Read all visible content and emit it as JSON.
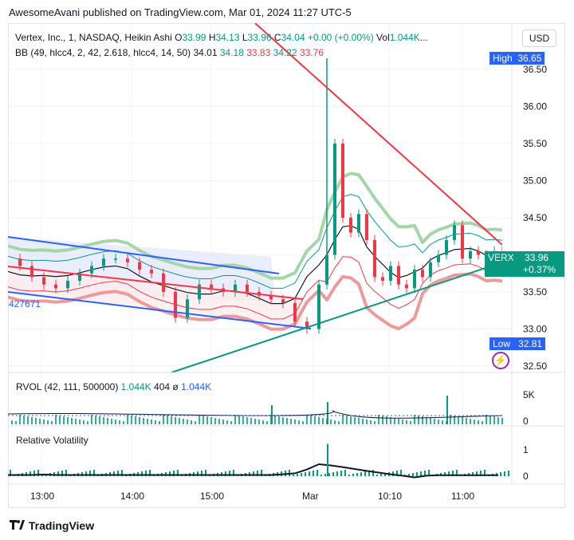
{
  "publish_line": "AwesomeAvani published on TradingView.com, Mar 01, 2024 11:27 UTC-5",
  "currency_button": "USD",
  "logo_text": "TradingView",
  "legend": {
    "symbol": "Vertex, Inc., 1, NASDAQ, Heikin Ashi",
    "open_label": "O",
    "open": "33.99",
    "high_label": "H",
    "high": "34.13",
    "low_label": "L",
    "low": "33.96",
    "close_label": "C",
    "close": "34.04",
    "change": "+0.00 (+0.00%)",
    "vol_label": "Vol",
    "vol": "1.044K",
    "more": "...",
    "bb_label": "BB (49, hlcc4, 2, 42, 2.618, hlcc4, 14, 50)",
    "bb_values": [
      "34.01",
      "34.18",
      "33.83",
      "34.22",
      "33.76"
    ]
  },
  "tags": {
    "high_label": "High",
    "high_value": "36.65",
    "low_label": "Low",
    "low_value": "32.81",
    "ticker": "VERX",
    "last_price": "33.96",
    "last_change": "+0.37%"
  },
  "left_clipped_label": "427671",
  "rvol": {
    "label": "RVOL (42, 111, 500000)",
    "v1": "1.044K",
    "v2": "404",
    "v3": "ø",
    "v4": "1.044K",
    "ticks": [
      "5K",
      "0"
    ]
  },
  "relvol": {
    "label": "Relative Volatility",
    "ticks": [
      "1",
      "0"
    ]
  },
  "colors": {
    "up": "#089981",
    "down": "#f23645",
    "blue_channel": "#2962ff",
    "red_line": "#f23645",
    "green_line": "#089981",
    "upper_band": "#a5d6a7",
    "lower_band": "#ef9a9a"
  },
  "chart_data": {
    "type": "line",
    "title": "Vertex, Inc., 1, NASDAQ, Heikin Ashi",
    "y_ticks": [
      "36.50",
      "36.00",
      "35.50",
      "35.00",
      "34.50",
      "34.00",
      "33.50",
      "33.00",
      "32.50"
    ],
    "ylim": [
      32.45,
      36.75
    ],
    "x_ticks": [
      "13:00",
      "14:00",
      "15:00",
      "Mar",
      "10:10",
      "11:00"
    ],
    "series": [
      {
        "name": "Heikin Ashi close",
        "x": [
          0,
          3,
          6,
          9,
          12,
          15,
          18,
          21,
          24,
          27,
          30,
          33,
          36,
          39,
          42,
          45,
          48,
          51,
          54,
          57,
          60,
          63,
          66,
          69,
          72,
          75,
          78,
          80,
          82,
          84,
          86,
          88,
          90,
          92,
          94,
          96,
          98,
          100,
          102,
          104,
          106,
          108,
          110,
          112,
          114,
          116,
          118,
          120,
          122,
          124
        ],
        "values": [
          33.95,
          33.85,
          33.7,
          33.6,
          33.55,
          33.65,
          33.75,
          33.85,
          33.95,
          33.95,
          33.9,
          33.8,
          33.75,
          33.5,
          33.15,
          33.4,
          33.6,
          33.55,
          33.5,
          33.6,
          33.5,
          33.45,
          33.4,
          33.35,
          33.1,
          33.0,
          33.6,
          34.0,
          35.5,
          34.5,
          34.3,
          34.55,
          34.2,
          33.7,
          33.65,
          33.85,
          33.6,
          33.55,
          33.8,
          33.7,
          33.9,
          34.0,
          34.2,
          34.4,
          33.95,
          34.05,
          34.0,
          33.95,
          34.05,
          33.96
        ]
      }
    ],
    "volume": {
      "name": "RVOL",
      "max": 5000,
      "highlights": [
        {
          "x": 66,
          "value": 3000
        },
        {
          "x": 80,
          "value": 3500
        },
        {
          "x": 110,
          "value": 4500
        }
      ]
    },
    "relative_volatility": {
      "range": [
        0,
        1.5
      ],
      "values": [
        0.05,
        0.05,
        0.05,
        0.07,
        0.05,
        0.05,
        0.05,
        0.05,
        0.05,
        0.05,
        0.05,
        0.05,
        0.05,
        0.05,
        0.05,
        0.05,
        0.05,
        0.05,
        0.05,
        0.05,
        0.05,
        0.05,
        0.05,
        0.08,
        0.12,
        0.28,
        0.5,
        0.45,
        0.38,
        0.3,
        0.22,
        0.15,
        0.08,
        0.02,
        -0.05,
        0.02,
        0.04,
        0.04,
        0.04,
        0.04,
        0.04,
        0.04
      ]
    },
    "levels": {
      "high": 36.65,
      "low": 32.81,
      "last": 33.96
    }
  }
}
